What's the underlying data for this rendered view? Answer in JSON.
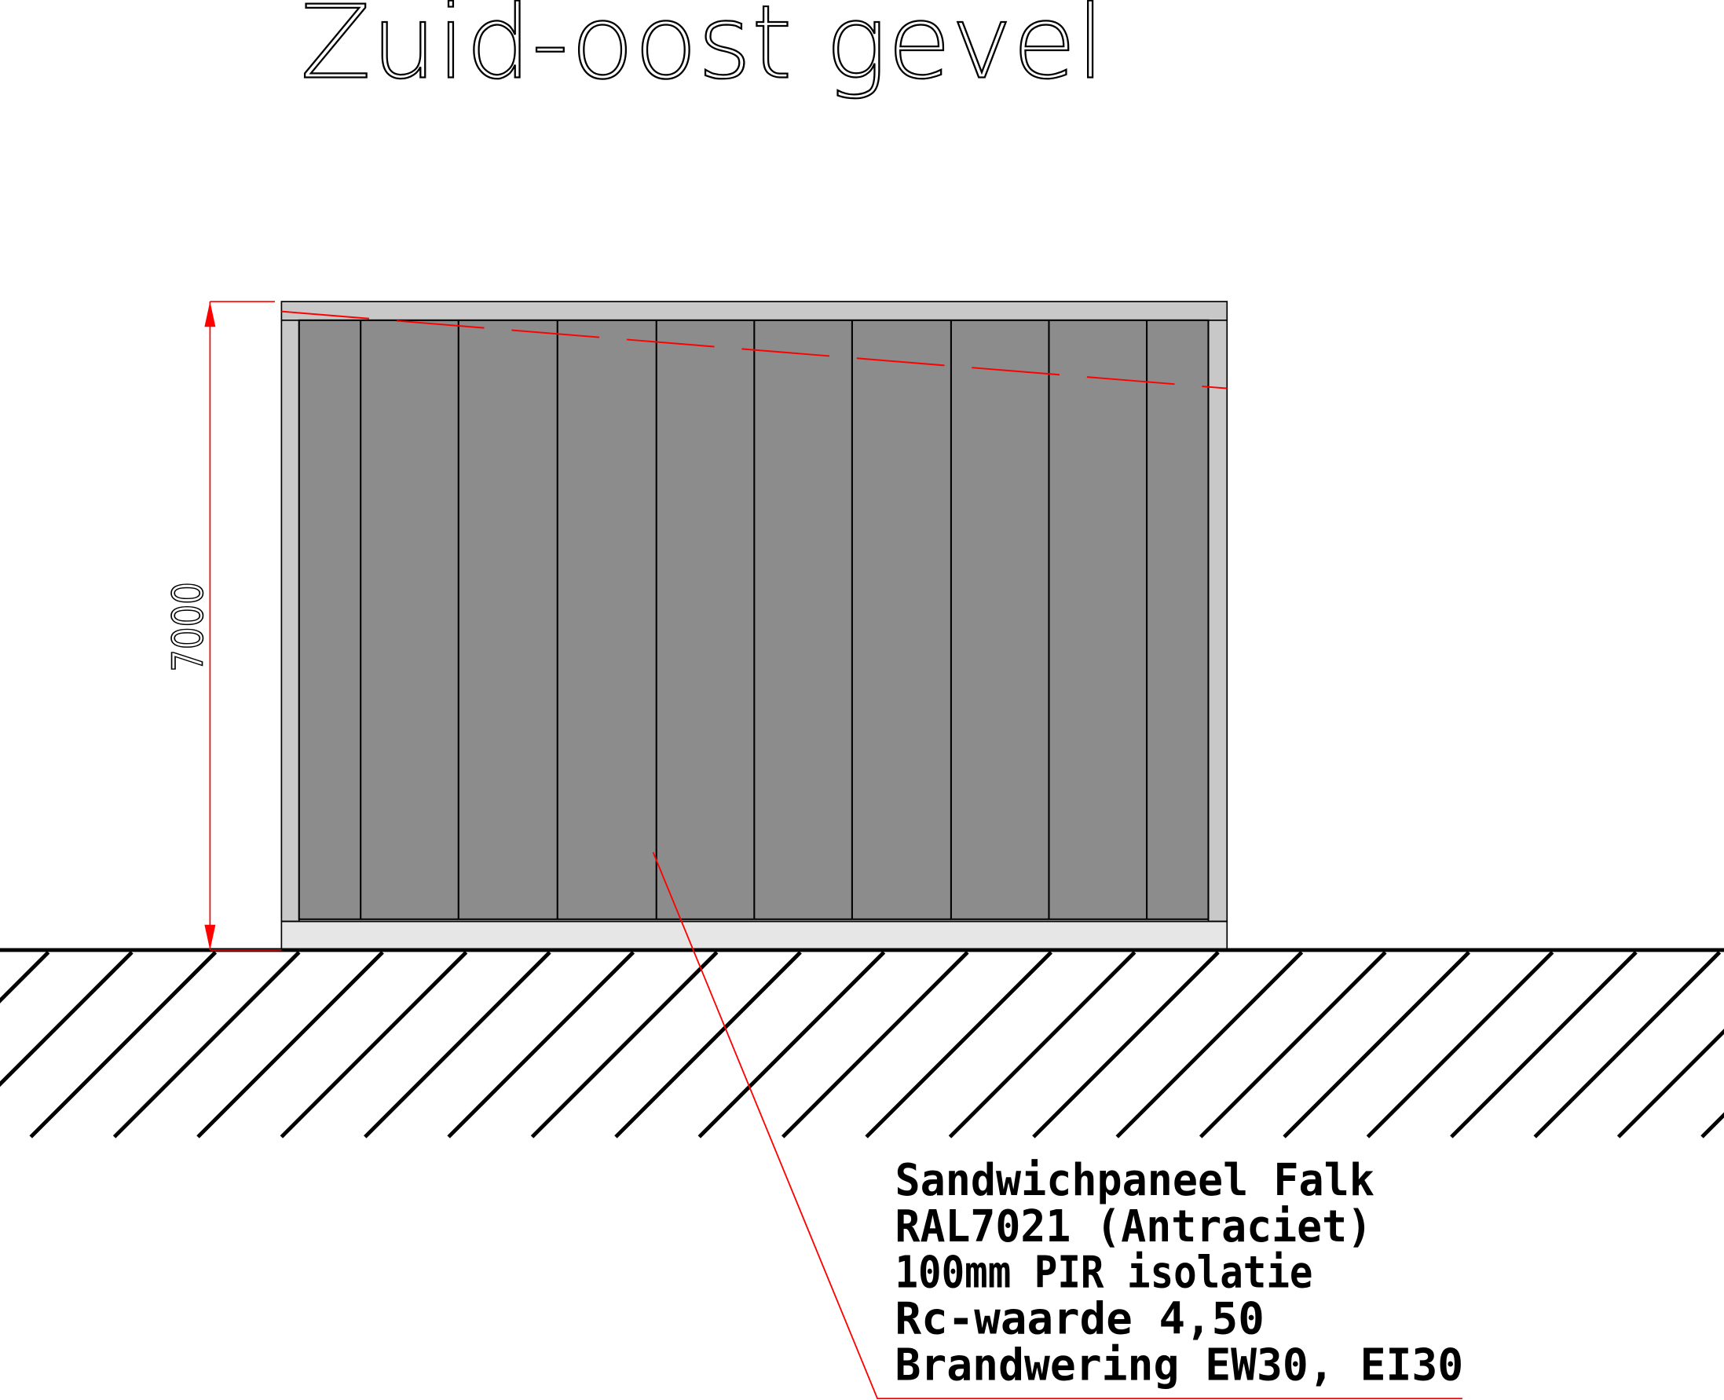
{
  "title": "Zuid-oost gevel",
  "dimension": {
    "value": "7000"
  },
  "note": {
    "lines": [
      "Sandwichpaneel Falk",
      "RAL7021 (Antraciet)",
      "100mm PIR isolatie",
      "Rc-waarde 4,50",
      "Brandwering EW30, EI30"
    ]
  },
  "colors": {
    "panel": "#8c8c8c",
    "frame": "#c8c8c8",
    "base": "#e6e6e6",
    "annotation": "#ff0000",
    "line": "#000000"
  }
}
